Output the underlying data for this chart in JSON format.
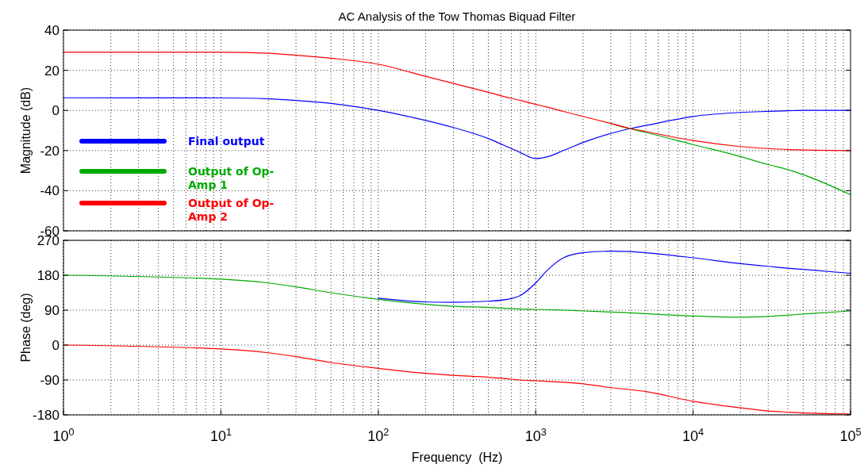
{
  "chart_data": [
    {
      "type": "line",
      "title": "AC Analysis of the Tow Thomas Biquad Filter",
      "ylabel": "Magnitude (dB)",
      "log": "x",
      "grid": true,
      "legend": "bottom left",
      "tick_labels": "y",
      "xlim": [
        1,
        100000
      ],
      "ylim": [
        -60,
        40
      ],
      "yticks": [
        -60,
        -40,
        -20,
        0,
        20,
        40
      ],
      "x": [
        1,
        10,
        20,
        30,
        50,
        100,
        200,
        300,
        500,
        700,
        800,
        1000,
        1200,
        1500,
        2000,
        3000,
        4000,
        5000,
        10000,
        20000,
        30000,
        40000,
        50000,
        100000
      ],
      "series": [
        {
          "name": "Final output",
          "color": "#0000ff",
          "values": [
            6.3,
            6.2,
            5.8,
            5,
            3.5,
            0,
            -5,
            -8.5,
            -14,
            -19,
            -21,
            -24,
            -23,
            -20,
            -16,
            -11.5,
            -9,
            -7.5,
            -3,
            -1,
            -0.5,
            -0.2,
            0,
            0
          ]
        },
        {
          "name": "Output of Op-Amp 1",
          "color": "#00aa00",
          "values": [
            null,
            null,
            null,
            null,
            null,
            null,
            null,
            null,
            null,
            null,
            null,
            null,
            null,
            null,
            null,
            -6.6,
            -9.2,
            -11,
            -17,
            -23,
            -27,
            -29.5,
            -32,
            -42
          ]
        },
        {
          "name": "Output of Op-Amp 2",
          "color": "#ff0000",
          "values": [
            29,
            29,
            28.5,
            27.5,
            26,
            23,
            17,
            13.5,
            9,
            6,
            5,
            3,
            1.5,
            -0.5,
            -3,
            -6.5,
            -9,
            -10.5,
            -15,
            -18,
            -19,
            -19.5,
            -19.7,
            -20
          ]
        }
      ]
    },
    {
      "type": "line",
      "xlabel": "Frequency  (Hz)",
      "ylabel": "Phase (deg)",
      "log": "x",
      "grid": true,
      "xlim": [
        1,
        100000
      ],
      "xticks": [
        {
          "value": 1,
          "label": "10$^{0}$"
        },
        {
          "value": 10,
          "label": "10$^{1}$"
        },
        {
          "value": 100,
          "label": "10$^{2}$"
        },
        {
          "value": 1000,
          "label": "10$^{3}$"
        },
        {
          "value": 10000,
          "label": "10$^{4}$"
        },
        {
          "value": 100000,
          "label": "10$^{5}$"
        }
      ],
      "ylim": [
        -180,
        270
      ],
      "yticks": [
        -180,
        -90,
        0,
        90,
        180,
        270
      ],
      "x": [
        1,
        10,
        20,
        30,
        50,
        100,
        200,
        300,
        500,
        700,
        800,
        1000,
        1200,
        1500,
        2000,
        3000,
        4000,
        5000,
        10000,
        20000,
        30000,
        40000,
        50000,
        100000
      ],
      "series": [
        {
          "color": "#0000ff",
          "values": [
            null,
            null,
            null,
            null,
            null,
            121,
            111,
            110,
            113,
            120,
            128,
            160,
            195,
            225,
            238,
            242,
            241,
            238,
            225,
            210,
            203,
            198,
            195,
            185
          ]
        },
        {
          "color": "#00aa00",
          "values": [
            180,
            170,
            160,
            150,
            135,
            118,
            105,
            100,
            97,
            94,
            93,
            92,
            91,
            90,
            88,
            85,
            83,
            81,
            75,
            72,
            74,
            77,
            80,
            88
          ]
        },
        {
          "color": "#ff0000",
          "values": [
            0,
            -10,
            -20,
            -30,
            -45,
            -60,
            -73,
            -78,
            -83,
            -88,
            -90,
            -92,
            -94,
            -96,
            -100,
            -110,
            -115,
            -120,
            -145,
            -162,
            -170,
            -173,
            -175,
            -178
          ]
        }
      ]
    }
  ]
}
